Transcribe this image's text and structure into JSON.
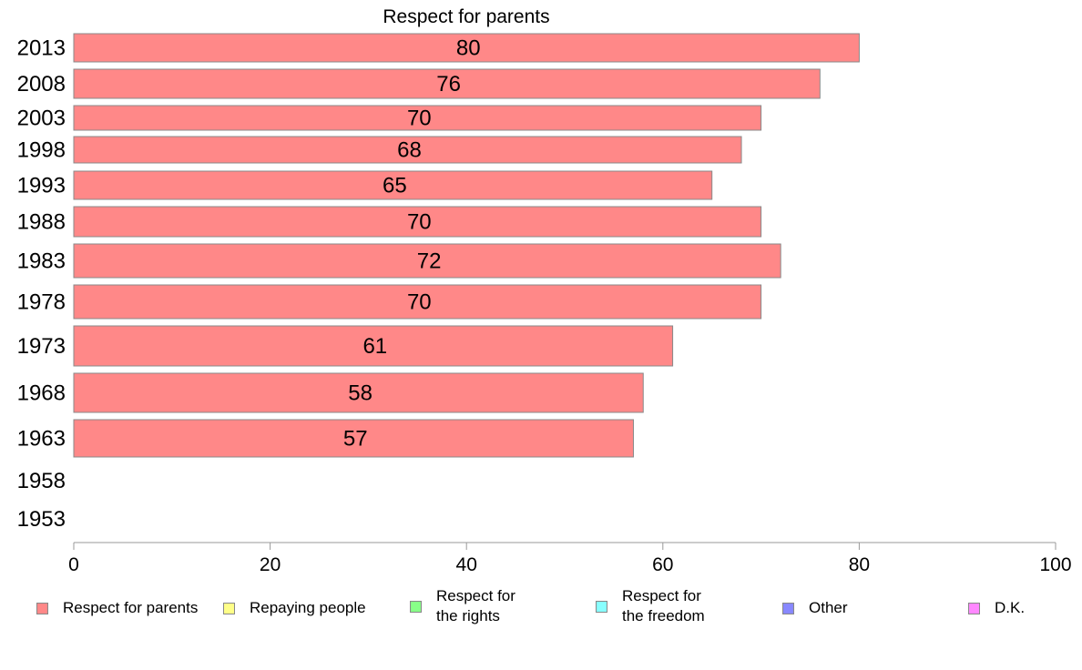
{
  "chart_data": {
    "type": "bar",
    "orientation": "horizontal",
    "title": "Respect for parents",
    "categories": [
      "2013",
      "2008",
      "2003",
      "1998",
      "1993",
      "1988",
      "1983",
      "1978",
      "1973",
      "1968",
      "1963",
      "1958",
      "1953"
    ],
    "series": [
      {
        "name": "Respect for parents",
        "color": "#ff8888",
        "values": [
          80,
          76,
          70,
          68,
          65,
          70,
          72,
          70,
          61,
          58,
          57,
          null,
          null
        ],
        "labels": [
          "80",
          "76",
          "70",
          "68",
          "65",
          "70",
          "72",
          "70",
          "61",
          "58",
          "57",
          "",
          ""
        ]
      }
    ],
    "xlim": [
      0,
      100
    ],
    "xticks": [
      "0",
      "20",
      "40",
      "60",
      "80",
      "100"
    ],
    "grid": false,
    "legend": {
      "position": "bottom",
      "items": [
        {
          "label": "Respect for parents",
          "color": "#ff8888"
        },
        {
          "label": "Repaying people",
          "color": "#ffff88"
        },
        {
          "label": "Respect for\nthe rights",
          "color": "#88ff88"
        },
        {
          "label": "Respect for\nthe freedom",
          "color": "#88ffff"
        },
        {
          "label": "Other",
          "color": "#8888ff"
        },
        {
          "label": "D.K.",
          "color": "#ff88ff"
        }
      ]
    }
  }
}
